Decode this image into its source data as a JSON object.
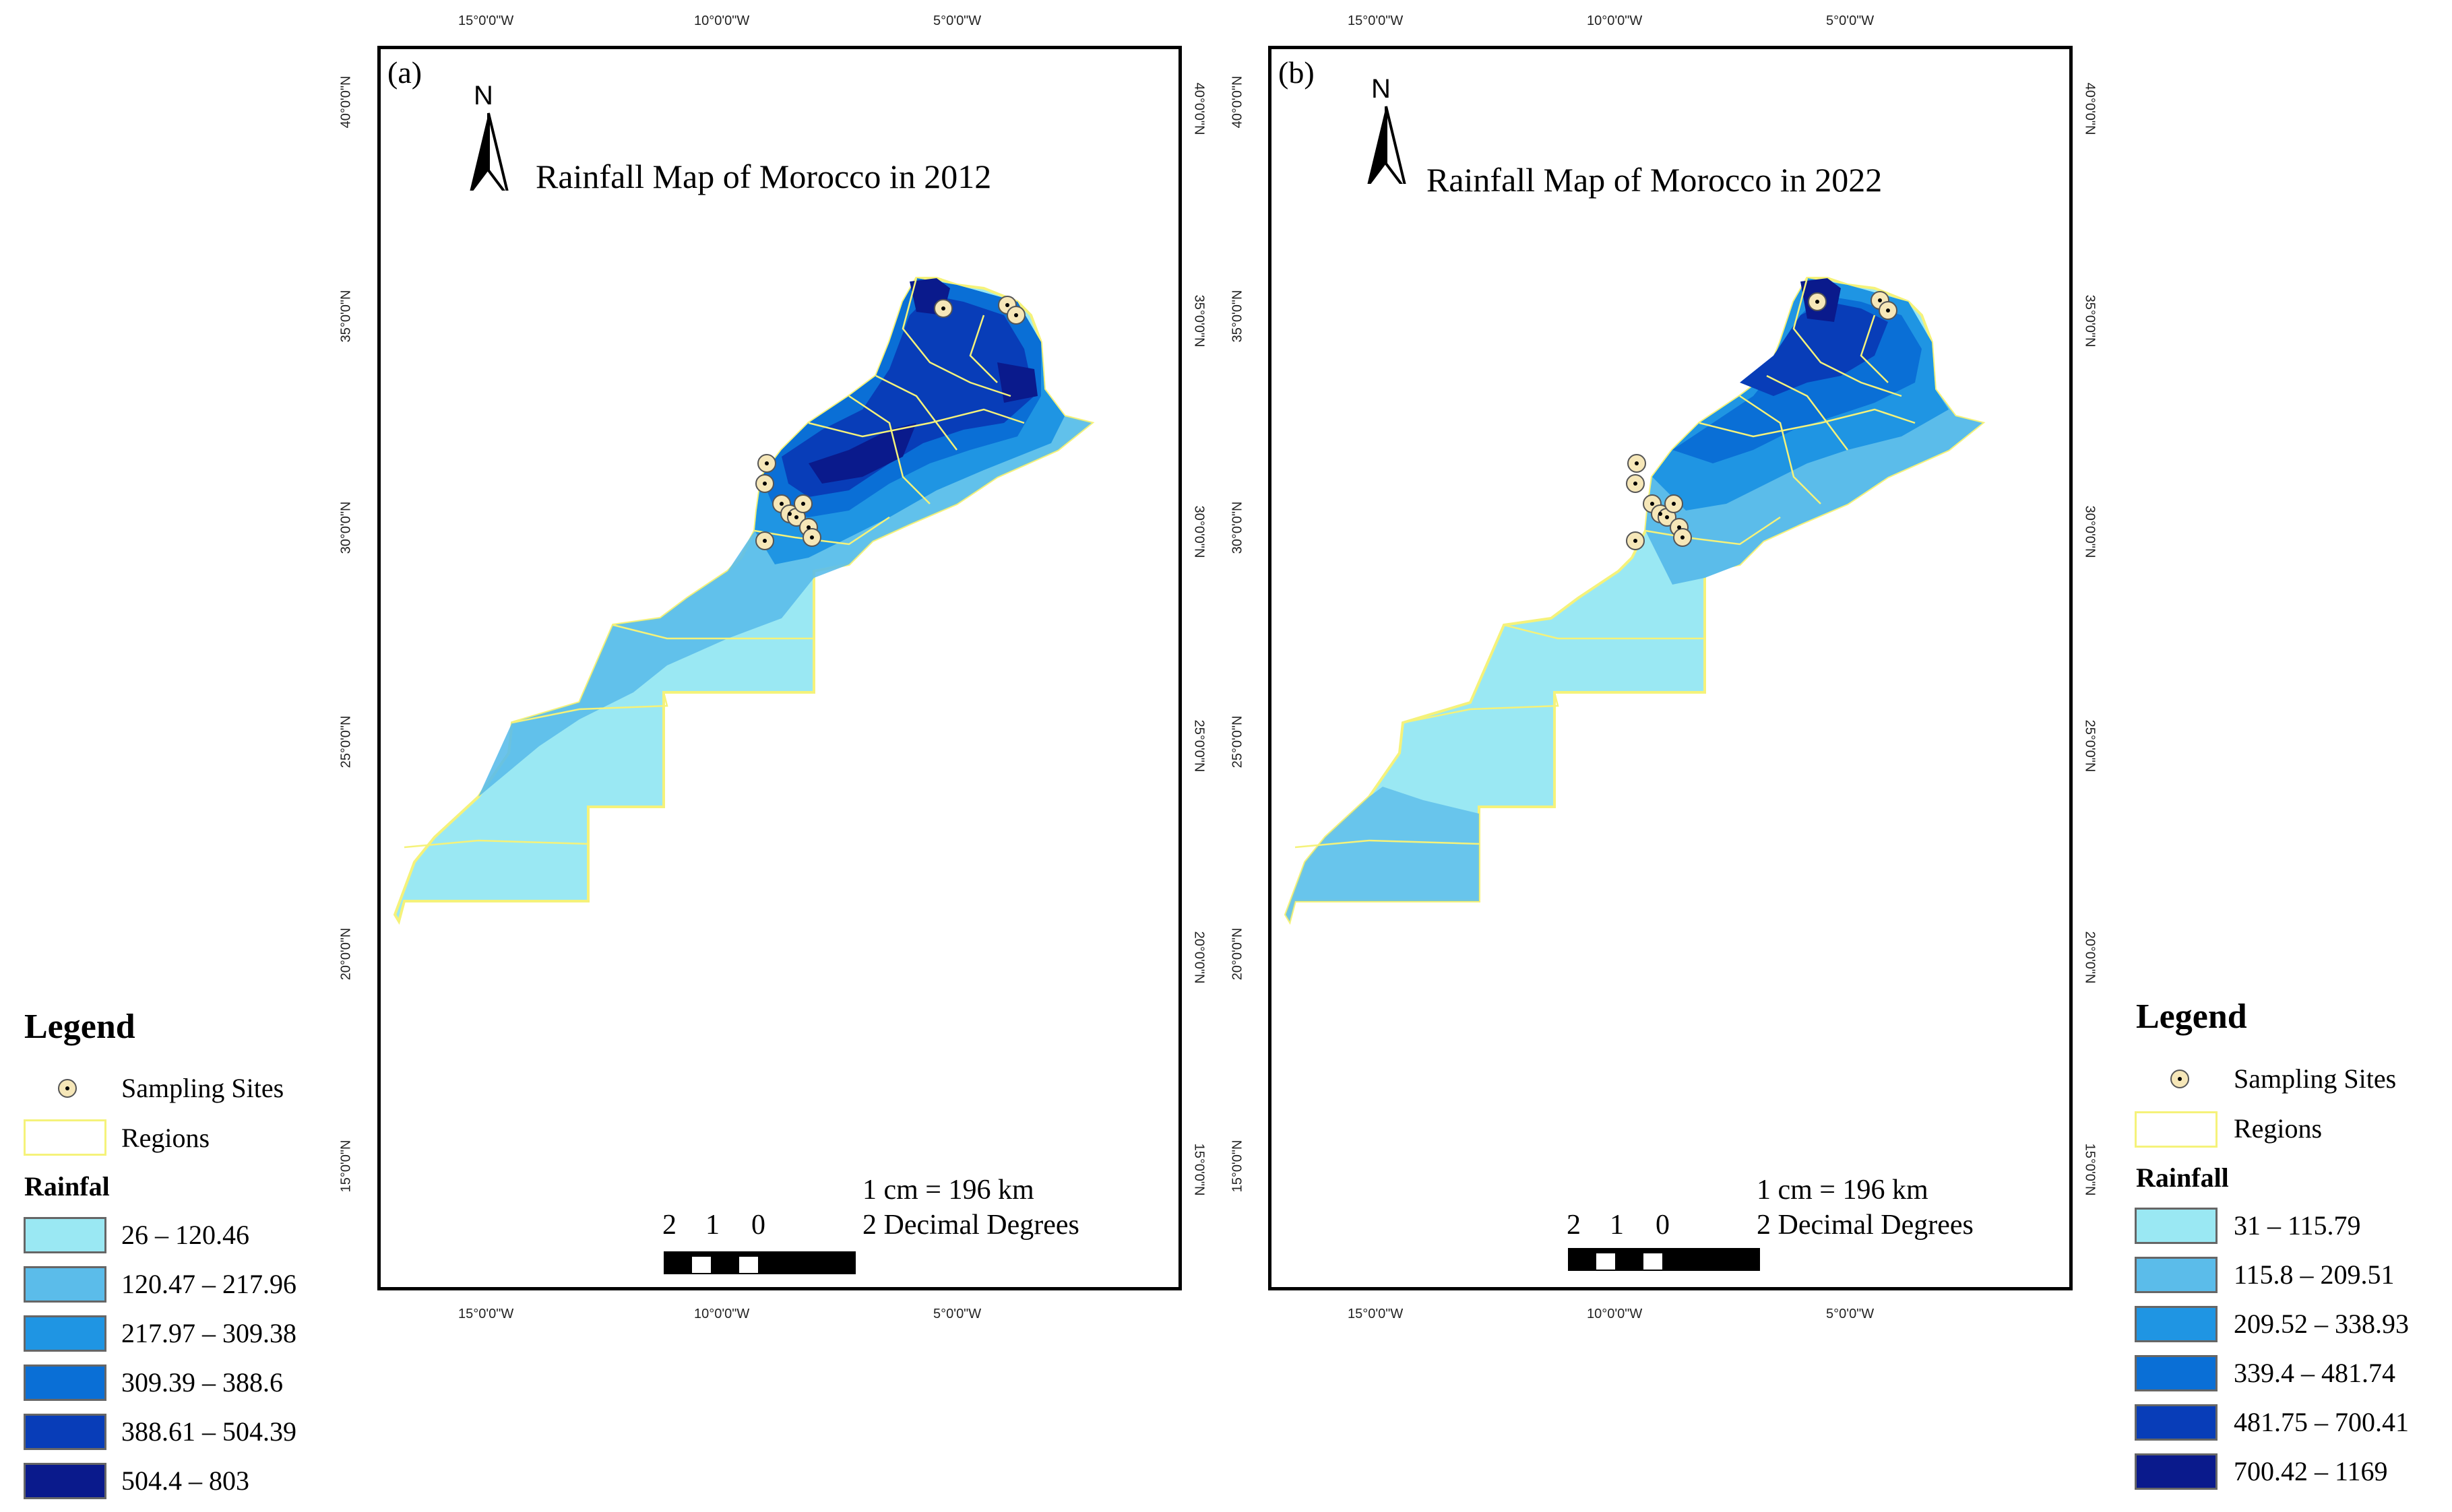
{
  "maps": [
    {
      "label": "(a)",
      "title": "Rainfall Map of Morocco in 2012",
      "scale_ratio": "1 cm = 196 km",
      "scale_units": "2 Decimal Degrees",
      "scale_ticks": [
        "2",
        "1",
        "0"
      ],
      "lon_ticks": [
        "15°0'0\"W",
        "10°0'0\"W",
        "5°0'0\"W"
      ],
      "lat_ticks": [
        "40°0'0\"N",
        "35°0'0\"N",
        "30°0'0\"N",
        "25°0'0\"N",
        "20°0'0\"N",
        "15°0'0\"N"
      ],
      "north": "N"
    },
    {
      "label": "(b)",
      "title": "Rainfall Map of Morocco in 2022",
      "scale_ratio": "1 cm = 196 km",
      "scale_units": "2 Decimal Degrees",
      "scale_ticks": [
        "2",
        "1",
        "0"
      ],
      "lon_ticks": [
        "15°0'0\"W",
        "10°0'0\"W",
        "5°0'0\"W"
      ],
      "lat_ticks": [
        "40°0'0\"N",
        "35°0'0\"N",
        "30°0'0\"N",
        "25°0'0\"N",
        "20°0'0\"N",
        "15°0'0\"N"
      ],
      "north": "N"
    }
  ],
  "legends": [
    {
      "title": "Legend",
      "sites_label": "Sampling Sites",
      "regions_label": "Regions",
      "rainfall_label": "Rainfal",
      "classes": [
        "26 – 120.46",
        "120.47 – 217.96",
        "217.97 – 309.38",
        "309.39 – 388.6",
        "388.61 – 504.39",
        "504.4 – 803"
      ]
    },
    {
      "title": "Legend",
      "sites_label": "Sampling Sites",
      "regions_label": "Regions",
      "rainfall_label": "Rainfall",
      "classes": [
        "31 – 115.79",
        "115.8 – 209.51",
        "209.52 – 338.93",
        "339.4 – 481.74",
        "481.75 – 700.41",
        "700.42 – 1169"
      ]
    }
  ],
  "colors": {
    "class_colors": [
      "#9ae8f3",
      "#5bbcea",
      "#1f95e3",
      "#0a6fd6",
      "#083db8",
      "#0a1a8c"
    ],
    "region_border": "#f5f27a",
    "site_fill": "#f6e7b8"
  }
}
